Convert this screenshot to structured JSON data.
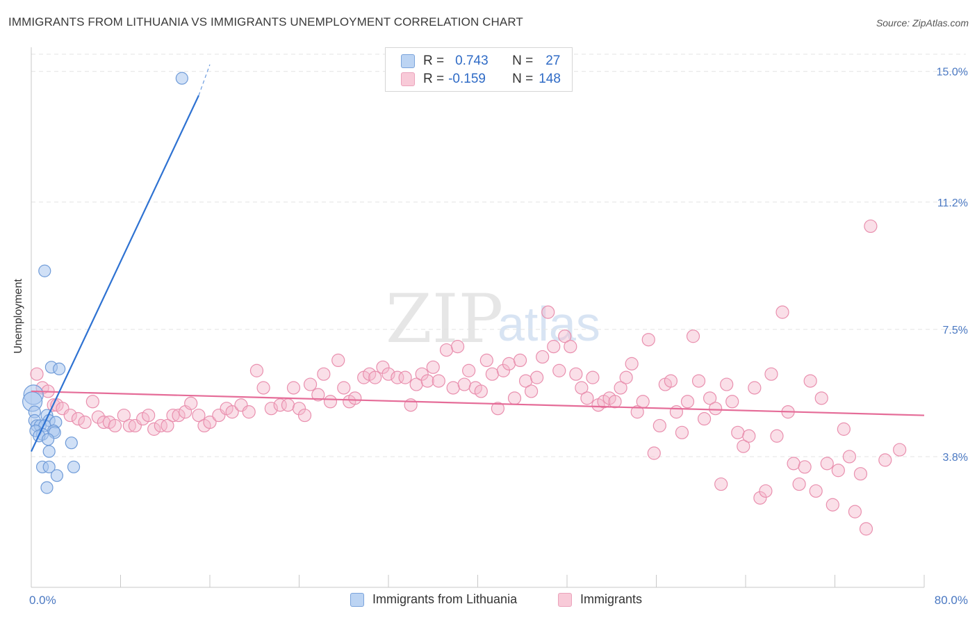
{
  "title": "IMMIGRANTS FROM LITHUANIA VS IMMIGRANTS UNEMPLOYMENT CORRELATION CHART",
  "source": "Source: ZipAtlas.com",
  "watermark": {
    "zip": "ZIP",
    "atlas": "atlas"
  },
  "legend": {
    "r_label": "R =",
    "n_label": "N =",
    "rows": [
      {
        "r": "0.743",
        "n": "27"
      },
      {
        "r": "-0.159",
        "n": "148"
      }
    ]
  },
  "colors": {
    "blue_fill": "#a9c6ee",
    "blue_stroke": "#6f9bd8",
    "blue_line": "#2e72d2",
    "pink_fill": "#f5b8cb",
    "pink_stroke": "#e98fae",
    "pink_line": "#e56c98",
    "tick_text": "#4a78c2",
    "grid": "#e3e3e3"
  },
  "chart_data": {
    "type": "scatter",
    "title": "IMMIGRANTS FROM LITHUANIA VS IMMIGRANTS UNEMPLOYMENT CORRELATION CHART",
    "xlabel": "",
    "ylabel": "Unemployment",
    "xlim": [
      0,
      80
    ],
    "ylim": [
      0,
      15.5
    ],
    "x_tick_labels": [
      "0.0%",
      "80.0%"
    ],
    "y_ticks": [
      3.8,
      7.5,
      11.2,
      15.0
    ],
    "y_tick_labels": [
      "3.8%",
      "7.5%",
      "11.2%",
      "15.0%"
    ],
    "grid": true,
    "legend_position": "top-center",
    "series": [
      {
        "name": "Immigrants from Lithuania",
        "r": 0.743,
        "n": 27,
        "trend": {
          "x": [
            0,
            15
          ],
          "y": [
            3.95,
            14.3
          ],
          "dashed_to": [
            16,
            15.2
          ]
        },
        "points": [
          [
            13.5,
            14.8
          ],
          [
            1.2,
            9.2
          ],
          [
            1.8,
            6.4
          ],
          [
            2.5,
            6.35
          ],
          [
            0.2,
            5.6
          ],
          [
            0.1,
            5.4
          ],
          [
            0.3,
            5.1
          ],
          [
            1.4,
            5.0
          ],
          [
            0.3,
            4.85
          ],
          [
            1.6,
            4.85
          ],
          [
            2.2,
            4.8
          ],
          [
            0.5,
            4.7
          ],
          [
            0.8,
            4.7
          ],
          [
            1.2,
            4.7
          ],
          [
            0.4,
            4.55
          ],
          [
            2.0,
            4.55
          ],
          [
            2.1,
            4.5
          ],
          [
            1.0,
            4.45
          ],
          [
            0.7,
            4.4
          ],
          [
            1.5,
            4.3
          ],
          [
            3.6,
            4.2
          ],
          [
            1.6,
            3.95
          ],
          [
            1.0,
            3.5
          ],
          [
            1.6,
            3.5
          ],
          [
            3.8,
            3.5
          ],
          [
            2.3,
            3.25
          ],
          [
            1.4,
            2.9
          ]
        ]
      },
      {
        "name": "Immigrants",
        "r": -0.159,
        "n": 148,
        "trend": {
          "x": [
            0,
            80
          ],
          "y": [
            5.7,
            5.0
          ]
        },
        "points": [
          [
            0.5,
            6.2
          ],
          [
            1.0,
            5.8
          ],
          [
            1.5,
            5.7
          ],
          [
            2.0,
            5.3
          ],
          [
            2.3,
            5.3
          ],
          [
            2.8,
            5.2
          ],
          [
            3.5,
            5.0
          ],
          [
            4.2,
            4.9
          ],
          [
            4.8,
            4.8
          ],
          [
            5.5,
            5.4
          ],
          [
            6.0,
            4.95
          ],
          [
            6.5,
            4.8
          ],
          [
            7.0,
            4.8
          ],
          [
            7.5,
            4.7
          ],
          [
            8.3,
            5.0
          ],
          [
            8.8,
            4.7
          ],
          [
            9.3,
            4.7
          ],
          [
            10.0,
            4.9
          ],
          [
            10.5,
            5.0
          ],
          [
            11.0,
            4.6
          ],
          [
            11.6,
            4.7
          ],
          [
            12.2,
            4.7
          ],
          [
            12.7,
            5.0
          ],
          [
            13.2,
            5.0
          ],
          [
            13.8,
            5.1
          ],
          [
            14.3,
            5.35
          ],
          [
            15.0,
            5.0
          ],
          [
            15.5,
            4.7
          ],
          [
            16.0,
            4.8
          ],
          [
            16.8,
            5.0
          ],
          [
            17.5,
            5.2
          ],
          [
            18.0,
            5.1
          ],
          [
            18.8,
            5.3
          ],
          [
            19.5,
            5.1
          ],
          [
            20.2,
            6.3
          ],
          [
            20.8,
            5.8
          ],
          [
            21.5,
            5.2
          ],
          [
            22.3,
            5.3
          ],
          [
            23.0,
            5.3
          ],
          [
            23.5,
            5.8
          ],
          [
            24.0,
            5.2
          ],
          [
            24.5,
            5.0
          ],
          [
            25.0,
            5.9
          ],
          [
            25.7,
            5.6
          ],
          [
            26.2,
            6.2
          ],
          [
            26.8,
            5.4
          ],
          [
            27.5,
            6.6
          ],
          [
            28.0,
            5.8
          ],
          [
            28.5,
            5.4
          ],
          [
            29.0,
            5.5
          ],
          [
            29.8,
            6.1
          ],
          [
            30.3,
            6.2
          ],
          [
            30.8,
            6.1
          ],
          [
            31.5,
            6.4
          ],
          [
            32.0,
            6.2
          ],
          [
            32.8,
            6.1
          ],
          [
            33.5,
            6.1
          ],
          [
            34.0,
            5.3
          ],
          [
            34.5,
            5.9
          ],
          [
            35.0,
            6.2
          ],
          [
            35.5,
            6.0
          ],
          [
            36.0,
            6.4
          ],
          [
            36.5,
            6.0
          ],
          [
            37.2,
            6.9
          ],
          [
            37.8,
            5.8
          ],
          [
            38.2,
            7.0
          ],
          [
            38.8,
            5.9
          ],
          [
            39.2,
            6.3
          ],
          [
            39.8,
            5.8
          ],
          [
            40.3,
            5.7
          ],
          [
            40.8,
            6.6
          ],
          [
            41.3,
            6.2
          ],
          [
            41.8,
            5.2
          ],
          [
            42.3,
            6.3
          ],
          [
            42.8,
            6.5
          ],
          [
            43.3,
            5.5
          ],
          [
            43.8,
            6.6
          ],
          [
            44.3,
            6.0
          ],
          [
            44.8,
            5.7
          ],
          [
            45.3,
            6.1
          ],
          [
            45.8,
            6.7
          ],
          [
            46.3,
            8.0
          ],
          [
            46.8,
            7.0
          ],
          [
            47.3,
            6.3
          ],
          [
            47.8,
            7.3
          ],
          [
            48.3,
            7.0
          ],
          [
            48.8,
            6.2
          ],
          [
            49.3,
            5.8
          ],
          [
            49.8,
            5.5
          ],
          [
            50.3,
            6.1
          ],
          [
            50.8,
            5.3
          ],
          [
            51.3,
            5.4
          ],
          [
            51.8,
            5.5
          ],
          [
            52.3,
            5.4
          ],
          [
            52.8,
            5.8
          ],
          [
            53.3,
            6.1
          ],
          [
            53.8,
            6.5
          ],
          [
            54.3,
            5.1
          ],
          [
            54.8,
            5.4
          ],
          [
            55.3,
            7.2
          ],
          [
            55.8,
            3.9
          ],
          [
            56.3,
            4.7
          ],
          [
            56.8,
            5.9
          ],
          [
            57.3,
            6.0
          ],
          [
            57.8,
            5.1
          ],
          [
            58.3,
            4.5
          ],
          [
            58.8,
            5.4
          ],
          [
            59.3,
            7.3
          ],
          [
            59.8,
            6.0
          ],
          [
            60.3,
            4.9
          ],
          [
            60.8,
            5.5
          ],
          [
            61.3,
            5.2
          ],
          [
            61.8,
            3.0
          ],
          [
            62.3,
            5.9
          ],
          [
            62.8,
            5.4
          ],
          [
            63.3,
            4.5
          ],
          [
            63.8,
            4.1
          ],
          [
            64.3,
            4.4
          ],
          [
            64.8,
            5.8
          ],
          [
            65.3,
            2.6
          ],
          [
            65.8,
            2.8
          ],
          [
            66.3,
            6.2
          ],
          [
            66.8,
            4.4
          ],
          [
            67.3,
            8.0
          ],
          [
            67.8,
            5.1
          ],
          [
            68.3,
            3.6
          ],
          [
            68.8,
            3.0
          ],
          [
            69.3,
            3.5
          ],
          [
            69.8,
            6.0
          ],
          [
            70.3,
            2.8
          ],
          [
            70.8,
            5.5
          ],
          [
            71.3,
            3.6
          ],
          [
            71.8,
            2.4
          ],
          [
            72.3,
            3.4
          ],
          [
            72.8,
            4.6
          ],
          [
            73.3,
            3.8
          ],
          [
            73.8,
            2.2
          ],
          [
            74.3,
            3.3
          ],
          [
            74.8,
            1.7
          ],
          [
            75.2,
            10.5
          ],
          [
            76.5,
            3.7
          ],
          [
            77.8,
            4.0
          ]
        ]
      }
    ]
  },
  "bottom_legend": [
    "Immigrants from Lithuania",
    "Immigrants"
  ]
}
